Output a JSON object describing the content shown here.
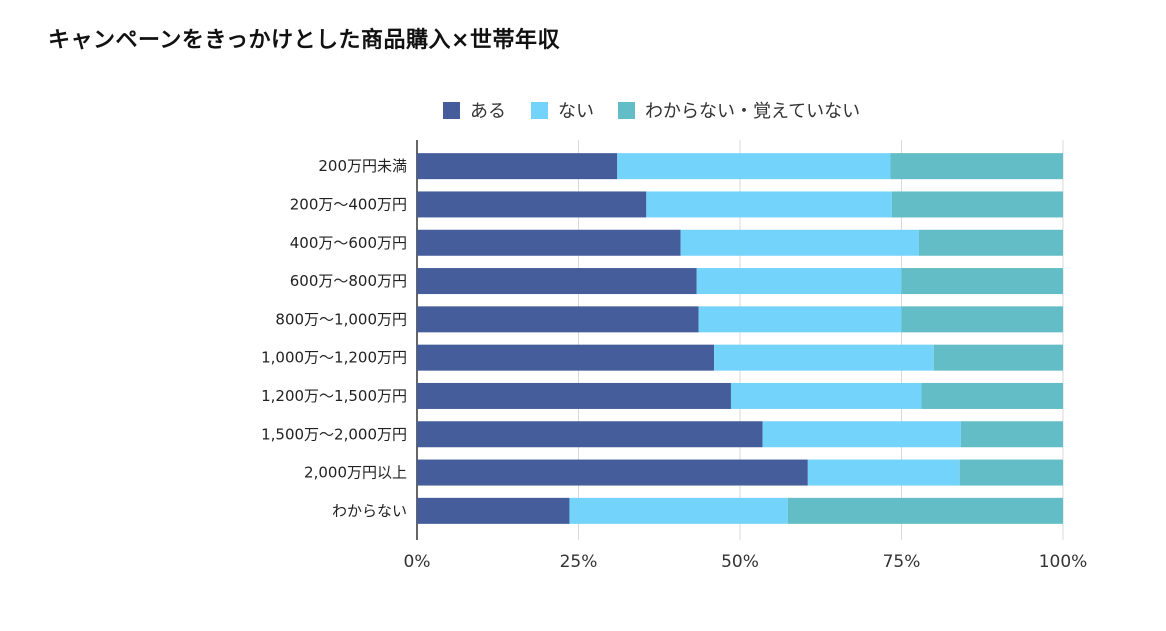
{
  "chart_data": {
    "type": "bar",
    "orientation": "horizontal",
    "stacked": "percent",
    "title": "キャンペーンをきっかけとした商品購入×世帯年収",
    "categories": [
      "200万円未満",
      "200万～400万円",
      "400万～600万円",
      "600万～800万円",
      "800万～1,000万円",
      "1,000万～1,200万円",
      "1,200万～1,500万円",
      "1,500万～2,000万円",
      "2,000万円以上",
      "わからない"
    ],
    "series": [
      {
        "name": "ある",
        "color": "#455d9b",
        "values": [
          31.0,
          35.5,
          40.8,
          43.3,
          43.6,
          46.0,
          48.6,
          53.5,
          60.5,
          23.6
        ]
      },
      {
        "name": "ない",
        "color": "#74d3fa",
        "values": [
          42.3,
          38.0,
          36.9,
          31.7,
          31.4,
          34.0,
          29.5,
          30.7,
          23.5,
          33.8
        ]
      },
      {
        "name": "わからない・覚えていない",
        "color": "#63bdc6",
        "values": [
          26.7,
          26.5,
          22.3,
          25.0,
          25.0,
          20.0,
          21.9,
          15.8,
          16.0,
          42.6
        ]
      }
    ],
    "x_ticks": [
      "0%",
      "25%",
      "50%",
      "75%",
      "100%"
    ],
    "xlim": [
      0,
      100
    ],
    "grid": "vertical",
    "legend_position": "top"
  }
}
